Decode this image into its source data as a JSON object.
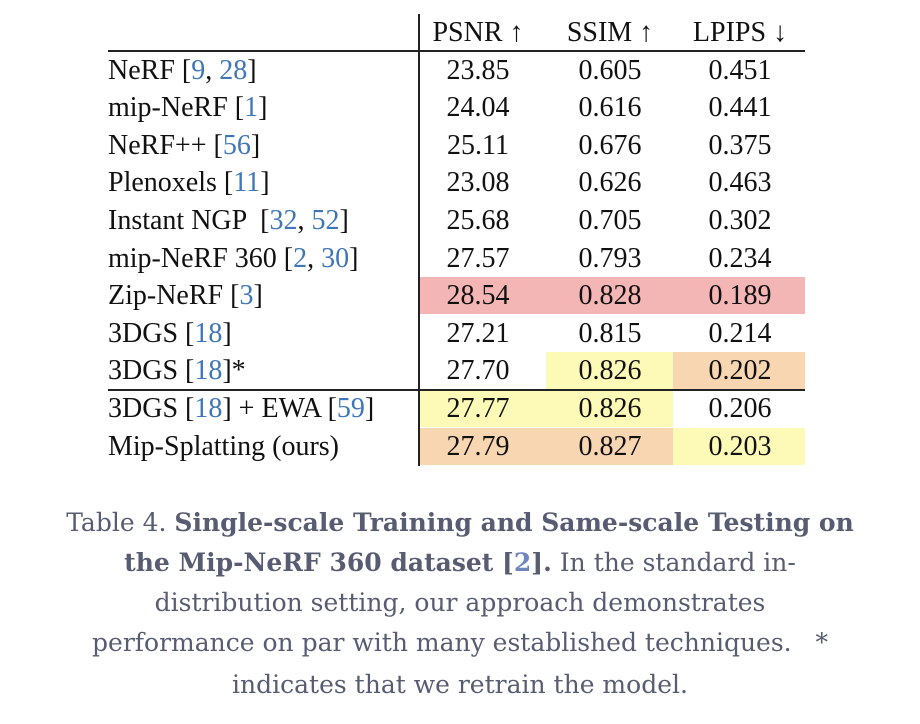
{
  "table": {
    "header": [
      "PSNR ↑",
      "SSIM ↑",
      "LPIPS ↓"
    ],
    "rows": [
      {
        "method": [
          {
            "text": "NeRF [",
            "ref": false
          },
          {
            "text": "9",
            "ref": true
          },
          {
            "text": ", ",
            "ref": false
          },
          {
            "text": "28",
            "ref": true
          },
          {
            "text": "]",
            "ref": false
          }
        ],
        "cells": [
          "23.85",
          "0.605",
          "0.451"
        ],
        "highlight": [
          null,
          null,
          null
        ]
      },
      {
        "method": [
          {
            "text": "mip-NeRF [",
            "ref": false
          },
          {
            "text": "1",
            "ref": true
          },
          {
            "text": "]",
            "ref": false
          }
        ],
        "cells": [
          "24.04",
          "0.616",
          "0.441"
        ],
        "highlight": [
          null,
          null,
          null
        ]
      },
      {
        "method": [
          {
            "text": "NeRF++ [",
            "ref": false
          },
          {
            "text": "56",
            "ref": true
          },
          {
            "text": "]",
            "ref": false
          }
        ],
        "cells": [
          "25.11",
          "0.676",
          "0.375"
        ],
        "highlight": [
          null,
          null,
          null
        ]
      },
      {
        "method": [
          {
            "text": "Plenoxels [",
            "ref": false
          },
          {
            "text": "11",
            "ref": true
          },
          {
            "text": "]",
            "ref": false
          }
        ],
        "cells": [
          "23.08",
          "0.626",
          "0.463"
        ],
        "highlight": [
          null,
          null,
          null
        ]
      },
      {
        "method": [
          {
            "text": "Instant NGP  [",
            "ref": false
          },
          {
            "text": "32",
            "ref": true
          },
          {
            "text": ", ",
            "ref": false
          },
          {
            "text": "52",
            "ref": true
          },
          {
            "text": "]",
            "ref": false
          }
        ],
        "cells": [
          "25.68",
          "0.705",
          "0.302"
        ],
        "highlight": [
          null,
          null,
          null
        ]
      },
      {
        "method": [
          {
            "text": "mip-NeRF 360 [",
            "ref": false
          },
          {
            "text": "2",
            "ref": true
          },
          {
            "text": ", ",
            "ref": false
          },
          {
            "text": "30",
            "ref": true
          },
          {
            "text": "]",
            "ref": false
          }
        ],
        "cells": [
          "27.57",
          "0.793",
          "0.234"
        ],
        "highlight": [
          null,
          null,
          null
        ]
      },
      {
        "method": [
          {
            "text": "Zip-NeRF [",
            "ref": false
          },
          {
            "text": "3",
            "ref": true
          },
          {
            "text": "]",
            "ref": false
          }
        ],
        "cells": [
          "28.54",
          "0.828",
          "0.189"
        ],
        "highlight": [
          "#f4b5b5",
          "#f4b5b5",
          "#f4b5b5"
        ]
      },
      {
        "method": [
          {
            "text": "3DGS [",
            "ref": false
          },
          {
            "text": "18",
            "ref": true
          },
          {
            "text": "]",
            "ref": false
          }
        ],
        "cells": [
          "27.21",
          "0.815",
          "0.214"
        ],
        "highlight": [
          null,
          null,
          null
        ]
      },
      {
        "method": [
          {
            "text": "3DGS [",
            "ref": false
          },
          {
            "text": "18",
            "ref": true
          },
          {
            "text": "]*",
            "ref": false
          }
        ],
        "cells": [
          "27.70",
          "0.826",
          "0.202"
        ],
        "highlight": [
          null,
          "#fdfab8",
          "#f9d6b2"
        ]
      },
      {
        "method": [
          {
            "text": "3DGS [",
            "ref": false
          },
          {
            "text": "18",
            "ref": true
          },
          {
            "text": "] + EWA [",
            "ref": false
          },
          {
            "text": "59",
            "ref": true
          },
          {
            "text": "]",
            "ref": false
          }
        ],
        "cells": [
          "27.77",
          "0.826",
          "0.206"
        ],
        "highlight": [
          "#fdfab8",
          "#fdfab8",
          null
        ]
      },
      {
        "method": [
          {
            "text": "Mip-Splatting (ours)",
            "ref": false
          }
        ],
        "cells": [
          "27.79",
          "0.827",
          "0.203"
        ],
        "highlight": [
          "#f9d6b2",
          "#f9d6b2",
          "#fdfab8"
        ]
      }
    ]
  },
  "caption": {
    "lines": [
      [
        {
          "text": "Table 4. ",
          "bold": false,
          "ref": false
        },
        {
          "text": "Single-scale Training and Same-scale Testing on",
          "bold": true,
          "ref": false
        }
      ],
      [
        {
          "text": "the Mip-NeRF 360 dataset [",
          "bold": true,
          "ref": false
        },
        {
          "text": "2",
          "bold": true,
          "ref": true
        },
        {
          "text": "].",
          "bold": true,
          "ref": false
        },
        {
          "text": " In the standard in-",
          "bold": false,
          "ref": false
        }
      ],
      [
        {
          "text": "distribution setting, our approach demonstrates",
          "bold": false,
          "ref": false
        }
      ],
      [
        {
          "text": "performance on par with many established techniques.   ",
          "bold": false,
          "ref": false
        },
        {
          "text": "*",
          "bold": false,
          "ref": false
        }
      ],
      [
        {
          "text": "indicates that we retrain the model.",
          "bold": false,
          "ref": false
        }
      ]
    ]
  }
}
